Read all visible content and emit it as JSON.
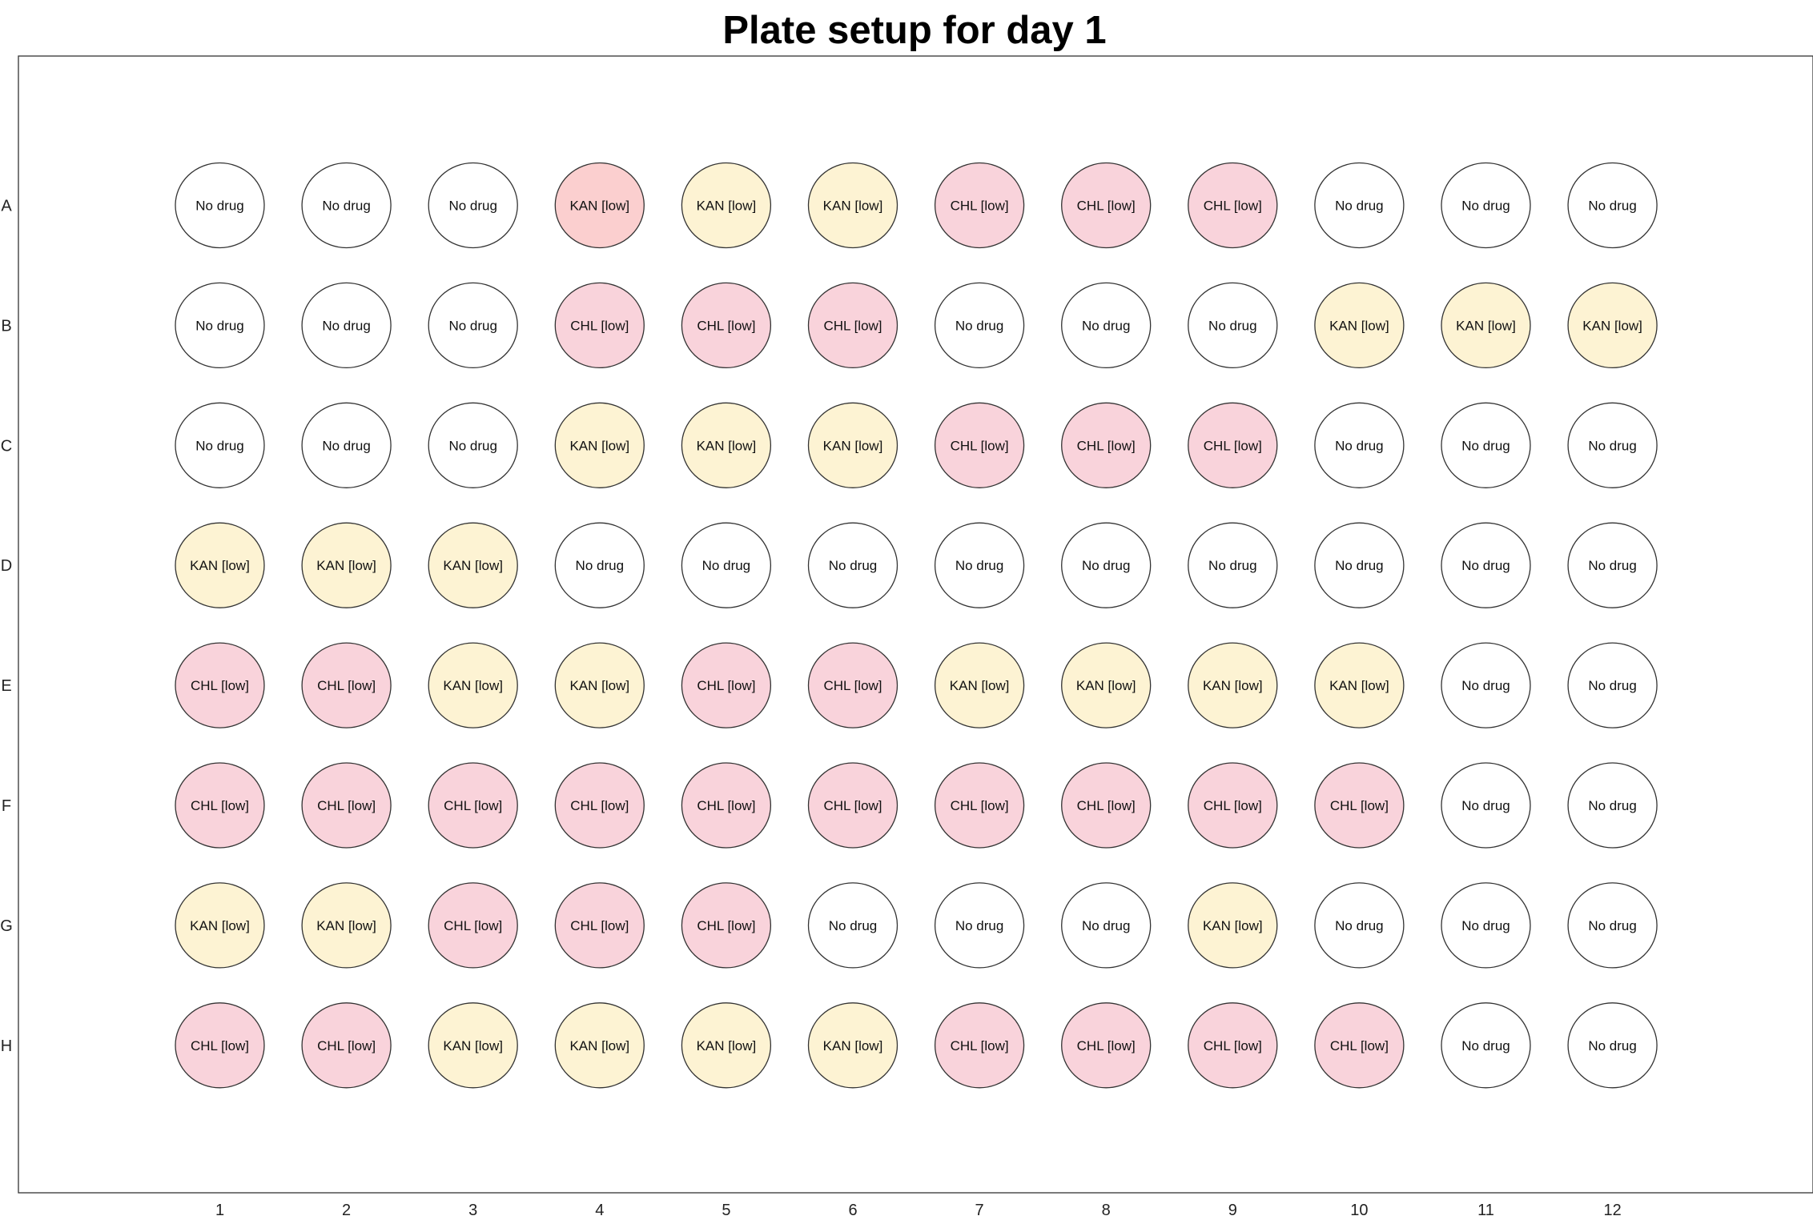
{
  "title": "Plate setup for day 1",
  "row_labels": [
    "A",
    "B",
    "C",
    "D",
    "E",
    "F",
    "G",
    "H"
  ],
  "column_labels": [
    "1",
    "2",
    "3",
    "4",
    "5",
    "6",
    "7",
    "8",
    "9",
    "10",
    "11",
    "12"
  ],
  "condition_colors": {
    "No drug": "#ffffff",
    "KAN [low]": "#fdf3d3",
    "CHL [low]": "#f9d3db"
  },
  "special_well_colors": {
    "A4": "#fbcfcf"
  },
  "wells": [
    [
      "No drug",
      "No drug",
      "No drug",
      "KAN [low]",
      "KAN [low]",
      "KAN [low]",
      "CHL [low]",
      "CHL [low]",
      "CHL [low]",
      "No drug",
      "No drug",
      "No drug"
    ],
    [
      "No drug",
      "No drug",
      "No drug",
      "CHL [low]",
      "CHL [low]",
      "CHL [low]",
      "No drug",
      "No drug",
      "No drug",
      "KAN [low]",
      "KAN [low]",
      "KAN [low]"
    ],
    [
      "No drug",
      "No drug",
      "No drug",
      "KAN [low]",
      "KAN [low]",
      "KAN [low]",
      "CHL [low]",
      "CHL [low]",
      "CHL [low]",
      "No drug",
      "No drug",
      "No drug"
    ],
    [
      "KAN [low]",
      "KAN [low]",
      "KAN [low]",
      "No drug",
      "No drug",
      "No drug",
      "No drug",
      "No drug",
      "No drug",
      "No drug",
      "No drug",
      "No drug"
    ],
    [
      "CHL [low]",
      "CHL [low]",
      "KAN [low]",
      "KAN [low]",
      "CHL [low]",
      "CHL [low]",
      "KAN [low]",
      "KAN [low]",
      "KAN [low]",
      "KAN [low]",
      "No drug",
      "No drug"
    ],
    [
      "CHL [low]",
      "CHL [low]",
      "CHL [low]",
      "CHL [low]",
      "CHL [low]",
      "CHL [low]",
      "CHL [low]",
      "CHL [low]",
      "CHL [low]",
      "CHL [low]",
      "No drug",
      "No drug"
    ],
    [
      "KAN [low]",
      "KAN [low]",
      "CHL [low]",
      "CHL [low]",
      "CHL [low]",
      "No drug",
      "No drug",
      "No drug",
      "KAN [low]",
      "No drug",
      "No drug",
      "No drug"
    ],
    [
      "CHL [low]",
      "CHL [low]",
      "KAN [low]",
      "KAN [low]",
      "KAN [low]",
      "KAN [low]",
      "CHL [low]",
      "CHL [low]",
      "CHL [low]",
      "CHL [low]",
      "No drug",
      "No drug"
    ]
  ]
}
